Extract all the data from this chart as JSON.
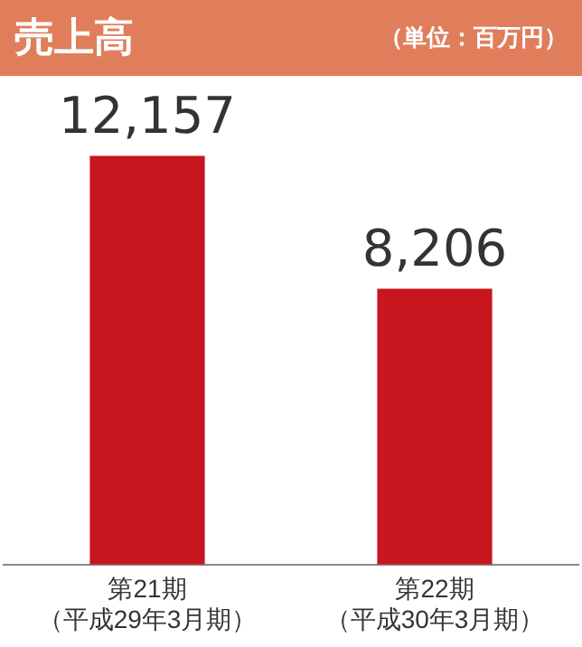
{
  "chart_data": {
    "type": "bar",
    "title": "売上高",
    "subtitle": "（単位：百万円）",
    "categories": [
      "第21期（平成29年3月期）",
      "第22期（平成30年3月期）"
    ],
    "values": [
      12157,
      8206
    ],
    "color": "#c8161e",
    "value_labels": [
      "12,157",
      "8,206"
    ],
    "grid": false,
    "legend": false
  }
}
